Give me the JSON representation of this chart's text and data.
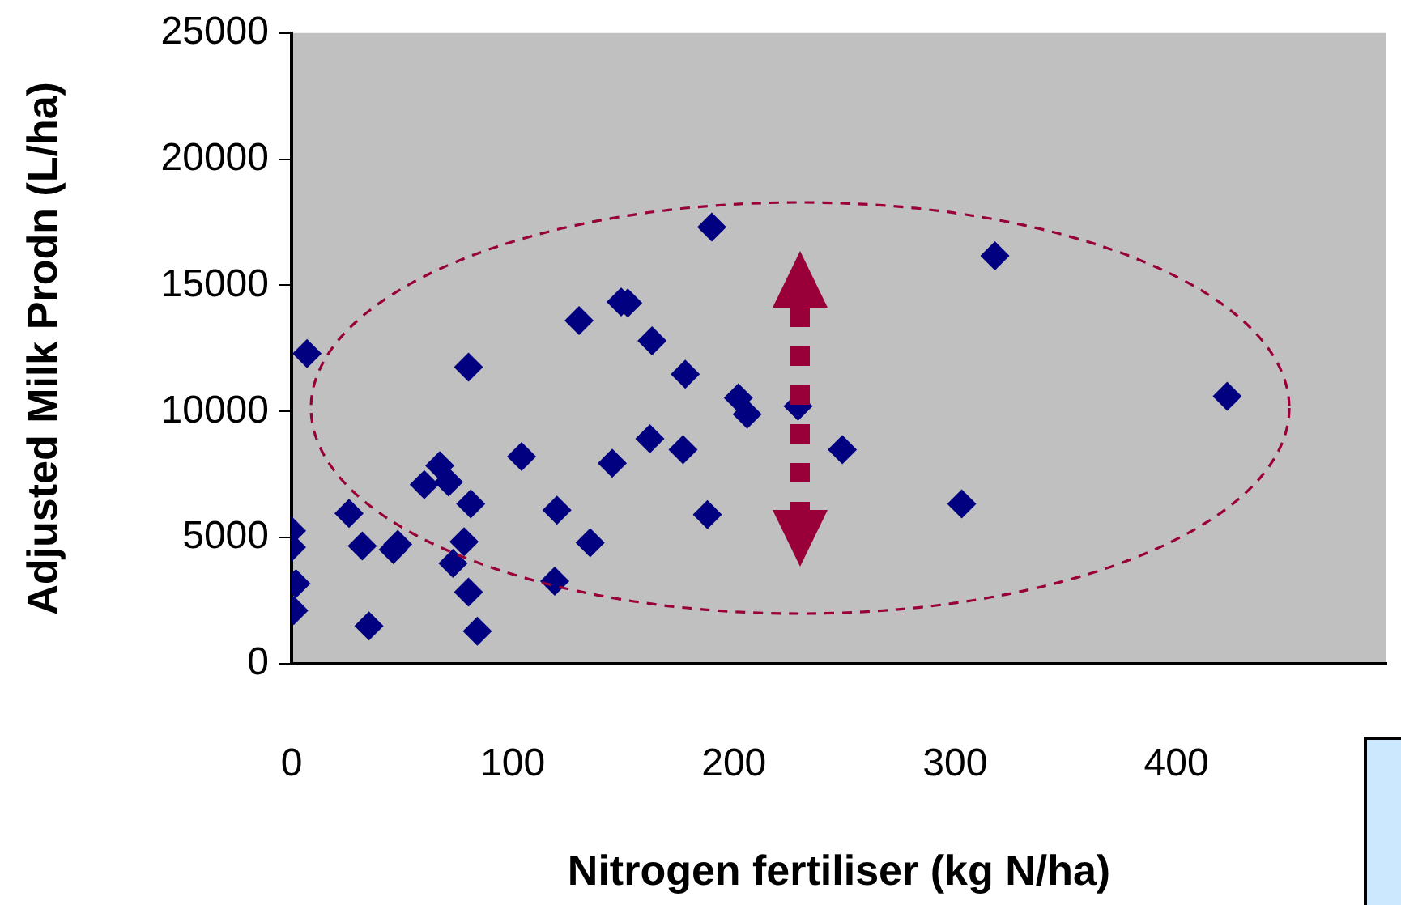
{
  "chart_data": {
    "type": "scatter",
    "xlabel": "Nitrogen fertiliser (kg N/ha)",
    "ylabel": "Adjusted Milk Prodn (L/ha)",
    "xlim": [
      0,
      495
    ],
    "xticks": [
      0,
      100,
      200,
      300,
      400
    ],
    "ylim": [
      0,
      25000
    ],
    "yticks": [
      0,
      5000,
      10000,
      15000,
      20000,
      25000
    ],
    "grid": false,
    "legend": false,
    "marker": "diamond",
    "series": [
      {
        "color": "#000080",
        "x": [
          7,
          80,
          104,
          130,
          149,
          152,
          163,
          162,
          145,
          120,
          135,
          119,
          60,
          67,
          71,
          81,
          26,
          32,
          48,
          46,
          78,
          73,
          80,
          84,
          35,
          0,
          0,
          2,
          1,
          190,
          318,
          178,
          202,
          206,
          229,
          177,
          249,
          188,
          303,
          423
        ],
        "values": [
          12300,
          11760,
          8210,
          13600,
          14340,
          14300,
          12800,
          8920,
          7950,
          6090,
          4800,
          3270,
          7100,
          7850,
          7200,
          6340,
          5960,
          4670,
          4730,
          4520,
          4840,
          3980,
          2840,
          1290,
          1500,
          5270,
          4620,
          3180,
          2110,
          17310,
          16170,
          11480,
          10540,
          9890,
          10210,
          8490,
          8490,
          5910,
          6340,
          10600
        ]
      }
    ]
  }
}
